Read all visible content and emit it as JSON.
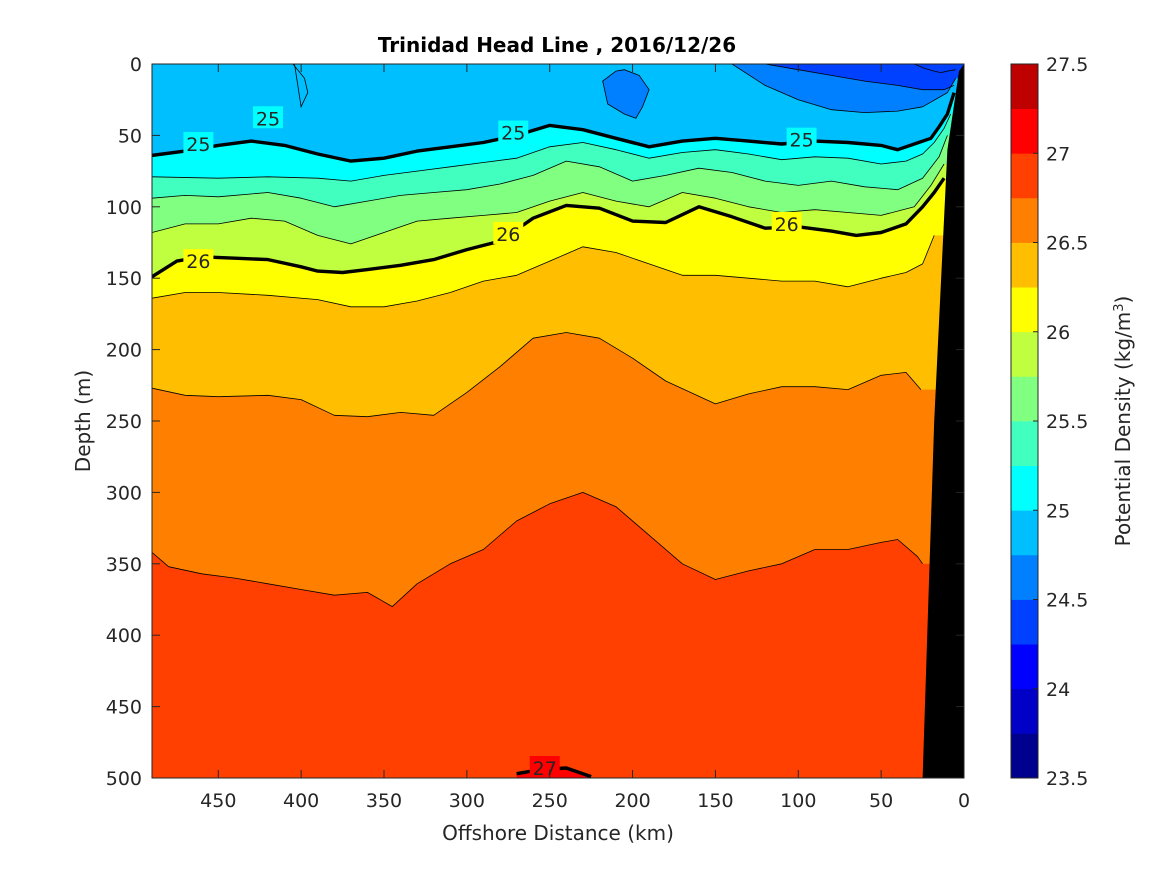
{
  "chart_data": {
    "type": "heatmap",
    "subtype": "filled-contour",
    "title": "Trinidad Head Line , 2016/12/26",
    "xlabel": "Offshore Distance (km)",
    "ylabel": "Depth (m)",
    "xlim": [
      490,
      0
    ],
    "ylim": [
      0,
      500
    ],
    "x_reversed": true,
    "y_reversed": true,
    "x_ticks": [
      450,
      400,
      350,
      300,
      250,
      200,
      150,
      100,
      50,
      0
    ],
    "y_ticks": [
      0,
      50,
      100,
      150,
      200,
      250,
      300,
      350,
      400,
      450,
      500
    ],
    "colorbar": {
      "label_prefix": "Potential Density (kg/m",
      "label_sup": "3",
      "label_suffix": ")",
      "range": [
        23.5,
        27.5
      ],
      "ticks": [
        23.5,
        24,
        24.5,
        25,
        25.5,
        26,
        26.5,
        27,
        27.5
      ],
      "tick_labels": [
        "23.5",
        "24",
        "24.5",
        "25",
        "25.5",
        "26",
        "26.5",
        "27",
        "27.5"
      ],
      "level_step": 0.25,
      "colors": [
        "#00008f",
        "#0000c7",
        "#0000ff",
        "#0040ff",
        "#0080ff",
        "#00bfff",
        "#00ffff",
        "#40ffbf",
        "#80ff80",
        "#bfff40",
        "#ffff00",
        "#ffbf00",
        "#ff8000",
        "#ff4000",
        "#ff0000",
        "#bf0000"
      ]
    },
    "levels": [
      24.25,
      24.5,
      24.75,
      25,
      25.25,
      25.5,
      25.75,
      26,
      26.25,
      26.5,
      26.75,
      27
    ],
    "labeled_levels": [
      25,
      26,
      27
    ],
    "isopycnals": [
      {
        "level": 24.25,
        "x": [
          30,
          24,
          18,
          14,
          10,
          5
        ],
        "y": [
          0,
          3,
          5,
          6,
          5,
          4
        ]
      },
      {
        "level": 24.5,
        "x": [
          120,
          100,
          80,
          60,
          40,
          25,
          12,
          6
        ],
        "y": [
          0,
          4,
          8,
          12,
          15,
          18,
          18,
          15
        ]
      },
      {
        "level": 24.75,
        "x": [
          140,
          120,
          100,
          80,
          60,
          40,
          25,
          10,
          5
        ],
        "y": [
          0,
          15,
          25,
          32,
          34,
          33,
          30,
          20,
          10
        ]
      },
      {
        "level": 25,
        "x": [
          490,
          470,
          450,
          430,
          410,
          390,
          370,
          350,
          330,
          310,
          290,
          270,
          250,
          230,
          210,
          190,
          170,
          150,
          130,
          110,
          90,
          70,
          50,
          40,
          30,
          20,
          15,
          10,
          6
        ],
        "y": [
          64,
          61,
          57,
          54,
          57,
          63,
          68,
          66,
          61,
          58,
          55,
          50,
          43,
          46,
          52,
          58,
          54,
          52,
          54,
          56,
          54,
          55,
          57,
          60,
          56,
          52,
          44,
          35,
          20
        ]
      },
      {
        "level": 25.25,
        "x": [
          490,
          450,
          420,
          390,
          370,
          350,
          330,
          310,
          290,
          270,
          250,
          230,
          210,
          190,
          170,
          150,
          130,
          110,
          90,
          70,
          50,
          35,
          25,
          18,
          12,
          8
        ],
        "y": [
          79,
          80,
          79,
          80,
          82,
          78,
          75,
          72,
          69,
          66,
          58,
          55,
          60,
          66,
          62,
          60,
          63,
          67,
          65,
          66,
          70,
          68,
          63,
          55,
          45,
          35
        ]
      },
      {
        "level": 25.5,
        "x": [
          490,
          470,
          450,
          420,
          400,
          380,
          360,
          340,
          320,
          300,
          280,
          260,
          240,
          220,
          200,
          180,
          160,
          140,
          120,
          100,
          80,
          60,
          40,
          25,
          15,
          10
        ],
        "y": [
          94,
          92,
          93,
          90,
          94,
          100,
          96,
          92,
          90,
          88,
          84,
          78,
          68,
          72,
          82,
          78,
          73,
          76,
          82,
          85,
          82,
          86,
          88,
          80,
          65,
          50
        ]
      },
      {
        "level": 25.75,
        "x": [
          490,
          470,
          450,
          430,
          410,
          390,
          370,
          350,
          330,
          310,
          290,
          270,
          250,
          230,
          210,
          190,
          170,
          150,
          130,
          110,
          90,
          70,
          50,
          30,
          20,
          12
        ],
        "y": [
          118,
          112,
          112,
          108,
          110,
          120,
          126,
          118,
          110,
          108,
          106,
          104,
          96,
          90,
          96,
          100,
          90,
          94,
          100,
          104,
          102,
          104,
          106,
          100,
          85,
          70
        ]
      },
      {
        "level": 26,
        "x": [
          490,
          475,
          460,
          440,
          420,
          400,
          390,
          375,
          360,
          340,
          320,
          300,
          280,
          260,
          240,
          220,
          200,
          180,
          160,
          140,
          120,
          100,
          80,
          65,
          50,
          35,
          25,
          18,
          12
        ],
        "y": [
          149,
          138,
          135,
          136,
          137,
          142,
          145,
          146,
          144,
          141,
          137,
          130,
          124,
          108,
          99,
          101,
          110,
          111,
          100,
          107,
          115,
          114,
          117,
          120,
          118,
          112,
          100,
          90,
          80
        ]
      },
      {
        "level": 26.25,
        "x": [
          490,
          470,
          450,
          420,
          390,
          370,
          350,
          330,
          310,
          290,
          270,
          250,
          230,
          210,
          190,
          170,
          150,
          130,
          110,
          90,
          70,
          50,
          35,
          25,
          18
        ],
        "y": [
          164,
          160,
          160,
          162,
          165,
          170,
          170,
          166,
          160,
          152,
          148,
          138,
          128,
          132,
          140,
          148,
          148,
          150,
          152,
          152,
          156,
          150,
          146,
          140,
          120
        ]
      },
      {
        "level": 26.5,
        "x": [
          490,
          470,
          450,
          420,
          400,
          380,
          360,
          340,
          320,
          300,
          280,
          260,
          240,
          220,
          200,
          180,
          150,
          130,
          110,
          90,
          70,
          50,
          35,
          26
        ],
        "y": [
          227,
          232,
          233,
          232,
          235,
          246,
          247,
          244,
          246,
          230,
          212,
          192,
          188,
          192,
          206,
          222,
          238,
          231,
          226,
          226,
          228,
          218,
          216,
          228
        ]
      },
      {
        "level": 26.75,
        "x": [
          490,
          480,
          460,
          440,
          420,
          400,
          380,
          360,
          345,
          330,
          310,
          290,
          270,
          250,
          230,
          210,
          190,
          170,
          150,
          130,
          110,
          90,
          70,
          50,
          40,
          28,
          25
        ],
        "y": [
          342,
          352,
          357,
          360,
          364,
          368,
          372,
          370,
          380,
          364,
          350,
          340,
          320,
          308,
          300,
          310,
          330,
          350,
          361,
          355,
          350,
          340,
          340,
          335,
          333,
          345,
          350
        ]
      },
      {
        "level": 27,
        "x": [
          270,
          255,
          240,
          225
        ],
        "y": [
          497,
          494,
          493,
          499
        ]
      }
    ],
    "contour_labels": [
      {
        "text": "25",
        "x": 462,
        "y": 56
      },
      {
        "text": "25",
        "x": 420,
        "y": 38
      },
      {
        "text": "25",
        "x": 272,
        "y": 48
      },
      {
        "text": "25",
        "x": 98,
        "y": 53
      },
      {
        "text": "26",
        "x": 462,
        "y": 138
      },
      {
        "text": "26",
        "x": 275,
        "y": 119
      },
      {
        "text": "26",
        "x": 107,
        "y": 112
      },
      {
        "text": "27",
        "x": 253,
        "y": 493
      }
    ],
    "pockets": [
      {
        "level": 24.5,
        "x": [
          210,
          218,
          215,
          205,
          198,
          194,
          190,
          196,
          205
        ],
        "y": [
          5,
          12,
          28,
          35,
          38,
          30,
          18,
          8,
          4
        ]
      },
      {
        "level": 24.75,
        "x": [
          405,
          398,
          396,
          400,
          404
        ],
        "y": [
          0,
          10,
          20,
          30,
          0
        ]
      }
    ],
    "bottom_mask": {
      "x": [
        0,
        3,
        10,
        18,
        25,
        26
      ],
      "y": [
        0,
        5,
        60,
        250,
        500,
        500
      ]
    }
  }
}
